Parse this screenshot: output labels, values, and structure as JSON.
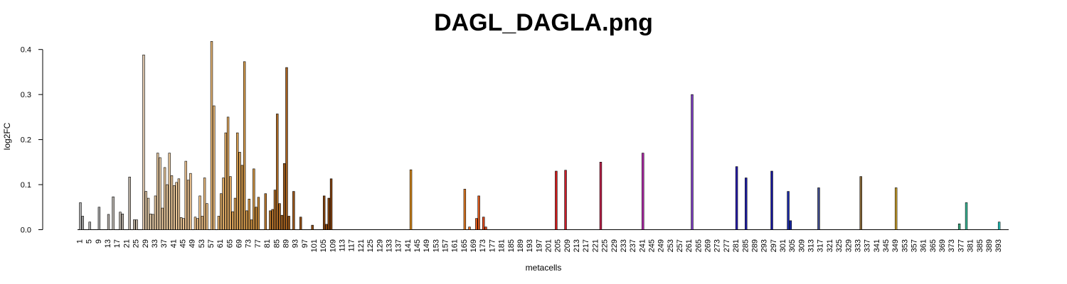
{
  "chart_data": {
    "type": "bar",
    "title": "DAGL_DAGLA.png",
    "xlabel": "metacells",
    "ylabel": "log2FC",
    "ylim": [
      0,
      0.42
    ],
    "yticks": [
      "0.0",
      "0.1",
      "0.2",
      "0.3",
      "0.4"
    ],
    "ytick_values": [
      0,
      0.1,
      0.2,
      0.3,
      0.4
    ],
    "n_categories": 395,
    "x_tick_labels": [
      "1",
      "5",
      "9",
      "13",
      "17",
      "21",
      "25",
      "29",
      "33",
      "37",
      "41",
      "45",
      "49",
      "53",
      "57",
      "61",
      "65",
      "69",
      "73",
      "77",
      "81",
      "85",
      "89",
      "93",
      "97",
      "101",
      "105",
      "109",
      "113",
      "117",
      "121",
      "125",
      "129",
      "133",
      "137",
      "141",
      "145",
      "149",
      "153",
      "157",
      "161",
      "165",
      "169",
      "173",
      "177",
      "181",
      "185",
      "189",
      "193",
      "197",
      "201",
      "205",
      "209",
      "213",
      "217",
      "221",
      "225",
      "229",
      "233",
      "237",
      "241",
      "245",
      "249",
      "253",
      "257",
      "261",
      "265",
      "269",
      "273",
      "277",
      "281",
      "285",
      "289",
      "293",
      "297",
      "301",
      "305",
      "309",
      "313",
      "317",
      "321",
      "325",
      "329",
      "333",
      "337",
      "341",
      "345",
      "349",
      "353",
      "357",
      "361",
      "365",
      "369",
      "373",
      "377",
      "381",
      "385",
      "389",
      "393"
    ],
    "bars": [
      {
        "x": 1,
        "value": 0.06,
        "color": "#a8a8a8"
      },
      {
        "x": 2,
        "value": 0.03,
        "color": "#a8a8a8"
      },
      {
        "x": 5,
        "value": 0.017,
        "color": "#a8a8a8"
      },
      {
        "x": 9,
        "value": 0.05,
        "color": "#a8a8a8"
      },
      {
        "x": 13,
        "value": 0.034,
        "color": "#b0aba5"
      },
      {
        "x": 15,
        "value": 0.073,
        "color": "#b0aba5"
      },
      {
        "x": 18,
        "value": 0.039,
        "color": "#b5ada3"
      },
      {
        "x": 19,
        "value": 0.035,
        "color": "#b5ada3"
      },
      {
        "x": 22,
        "value": 0.117,
        "color": "#b8aea2"
      },
      {
        "x": 24,
        "value": 0.022,
        "color": "#bcb0a0"
      },
      {
        "x": 25,
        "value": 0.022,
        "color": "#bcb0a0"
      },
      {
        "x": 28,
        "value": 0.388,
        "color": "#d9c2a8"
      },
      {
        "x": 29,
        "value": 0.085,
        "color": "#e2c9a7"
      },
      {
        "x": 30,
        "value": 0.07,
        "color": "#e2c9a7"
      },
      {
        "x": 31,
        "value": 0.035,
        "color": "#e2c9a7"
      },
      {
        "x": 32,
        "value": 0.034,
        "color": "#e2c9a7"
      },
      {
        "x": 33,
        "value": 0.075,
        "color": "#e6c9a2"
      },
      {
        "x": 34,
        "value": 0.17,
        "color": "#e6c9a2"
      },
      {
        "x": 35,
        "value": 0.16,
        "color": "#e6c9a2"
      },
      {
        "x": 36,
        "value": 0.048,
        "color": "#e8c79c"
      },
      {
        "x": 37,
        "value": 0.138,
        "color": "#e8c79c"
      },
      {
        "x": 38,
        "value": 0.1,
        "color": "#e8c79c"
      },
      {
        "x": 39,
        "value": 0.17,
        "color": "#e8c79c"
      },
      {
        "x": 40,
        "value": 0.12,
        "color": "#eac596"
      },
      {
        "x": 41,
        "value": 0.098,
        "color": "#eac596"
      },
      {
        "x": 42,
        "value": 0.105,
        "color": "#eac596"
      },
      {
        "x": 43,
        "value": 0.113,
        "color": "#eac596"
      },
      {
        "x": 44,
        "value": 0.027,
        "color": "#eac596"
      },
      {
        "x": 45,
        "value": 0.025,
        "color": "#ebc290"
      },
      {
        "x": 46,
        "value": 0.152,
        "color": "#ebc290"
      },
      {
        "x": 47,
        "value": 0.11,
        "color": "#ebc290"
      },
      {
        "x": 48,
        "value": 0.125,
        "color": "#ebc290"
      },
      {
        "x": 50,
        "value": 0.028,
        "color": "#ebbf88"
      },
      {
        "x": 51,
        "value": 0.025,
        "color": "#ebbf88"
      },
      {
        "x": 52,
        "value": 0.075,
        "color": "#ebbf88"
      },
      {
        "x": 53,
        "value": 0.03,
        "color": "#ebbf88"
      },
      {
        "x": 54,
        "value": 0.115,
        "color": "#e9bb80"
      },
      {
        "x": 55,
        "value": 0.058,
        "color": "#e9bb80"
      },
      {
        "x": 57,
        "value": 0.418,
        "color": "#e6b676"
      },
      {
        "x": 58,
        "value": 0.275,
        "color": "#e6b676"
      },
      {
        "x": 60,
        "value": 0.03,
        "color": "#e2b06c"
      },
      {
        "x": 61,
        "value": 0.08,
        "color": "#e2b06c"
      },
      {
        "x": 62,
        "value": 0.115,
        "color": "#e0ac66"
      },
      {
        "x": 63,
        "value": 0.215,
        "color": "#e0ac66"
      },
      {
        "x": 64,
        "value": 0.25,
        "color": "#dea860"
      },
      {
        "x": 65,
        "value": 0.118,
        "color": "#dea860"
      },
      {
        "x": 66,
        "value": 0.04,
        "color": "#dba45a"
      },
      {
        "x": 67,
        "value": 0.07,
        "color": "#dba45a"
      },
      {
        "x": 68,
        "value": 0.215,
        "color": "#d8a054"
      },
      {
        "x": 69,
        "value": 0.172,
        "color": "#d8a054"
      },
      {
        "x": 70,
        "value": 0.143,
        "color": "#d49b4e"
      },
      {
        "x": 71,
        "value": 0.373,
        "color": "#d49b4e"
      },
      {
        "x": 72,
        "value": 0.042,
        "color": "#d09648"
      },
      {
        "x": 73,
        "value": 0.068,
        "color": "#d09648"
      },
      {
        "x": 74,
        "value": 0.022,
        "color": "#cc9142"
      },
      {
        "x": 75,
        "value": 0.135,
        "color": "#cc9142"
      },
      {
        "x": 76,
        "value": 0.05,
        "color": "#c78b3c"
      },
      {
        "x": 77,
        "value": 0.072,
        "color": "#c78b3c"
      },
      {
        "x": 80,
        "value": 0.08,
        "color": "#b87830"
      },
      {
        "x": 82,
        "value": 0.042,
        "color": "#b3722b"
      },
      {
        "x": 83,
        "value": 0.045,
        "color": "#b3722b"
      },
      {
        "x": 84,
        "value": 0.088,
        "color": "#ae6c27"
      },
      {
        "x": 85,
        "value": 0.257,
        "color": "#ae6c27"
      },
      {
        "x": 86,
        "value": 0.058,
        "color": "#a96623"
      },
      {
        "x": 87,
        "value": 0.032,
        "color": "#a96623"
      },
      {
        "x": 88,
        "value": 0.147,
        "color": "#a4601f"
      },
      {
        "x": 89,
        "value": 0.36,
        "color": "#a4601f"
      },
      {
        "x": 90,
        "value": 0.03,
        "color": "#9f5b1c"
      },
      {
        "x": 92,
        "value": 0.085,
        "color": "#9a5619"
      },
      {
        "x": 95,
        "value": 0.028,
        "color": "#955117"
      },
      {
        "x": 100,
        "value": 0.01,
        "color": "#8f4c14"
      },
      {
        "x": 105,
        "value": 0.075,
        "color": "#8a4711"
      },
      {
        "x": 106,
        "value": 0.012,
        "color": "#8a4711"
      },
      {
        "x": 107,
        "value": 0.07,
        "color": "#86430f"
      },
      {
        "x": 108,
        "value": 0.113,
        "color": "#86430f"
      },
      {
        "x": 142,
        "value": 0.133,
        "color": "#d98a1c"
      },
      {
        "x": 165,
        "value": 0.09,
        "color": "#e07a24"
      },
      {
        "x": 167,
        "value": 0.006,
        "color": "#e06a22"
      },
      {
        "x": 170,
        "value": 0.025,
        "color": "#e05a1e"
      },
      {
        "x": 171,
        "value": 0.075,
        "color": "#e05a1e"
      },
      {
        "x": 173,
        "value": 0.028,
        "color": "#dd4a1c"
      },
      {
        "x": 174,
        "value": 0.006,
        "color": "#dd4a1c"
      },
      {
        "x": 204,
        "value": 0.13,
        "color": "#d01b1b"
      },
      {
        "x": 208,
        "value": 0.132,
        "color": "#c81d2a"
      },
      {
        "x": 223,
        "value": 0.15,
        "color": "#c0204a"
      },
      {
        "x": 241,
        "value": 0.17,
        "color": "#b02aa8"
      },
      {
        "x": 262,
        "value": 0.3,
        "color": "#7a3bbf"
      },
      {
        "x": 281,
        "value": 0.14,
        "color": "#2a1fb0"
      },
      {
        "x": 285,
        "value": 0.115,
        "color": "#1f1fa8"
      },
      {
        "x": 296,
        "value": 0.13,
        "color": "#14149a"
      },
      {
        "x": 303,
        "value": 0.085,
        "color": "#1a2aa8"
      },
      {
        "x": 304,
        "value": 0.02,
        "color": "#1a2aa8"
      },
      {
        "x": 316,
        "value": 0.093,
        "color": "#3e4a8a"
      },
      {
        "x": 334,
        "value": 0.118,
        "color": "#8a6a3a"
      },
      {
        "x": 349,
        "value": 0.093,
        "color": "#c8a030"
      },
      {
        "x": 376,
        "value": 0.013,
        "color": "#3aa880"
      },
      {
        "x": 379,
        "value": 0.06,
        "color": "#3ab898"
      },
      {
        "x": 393,
        "value": 0.017,
        "color": "#28c8c0"
      }
    ]
  }
}
